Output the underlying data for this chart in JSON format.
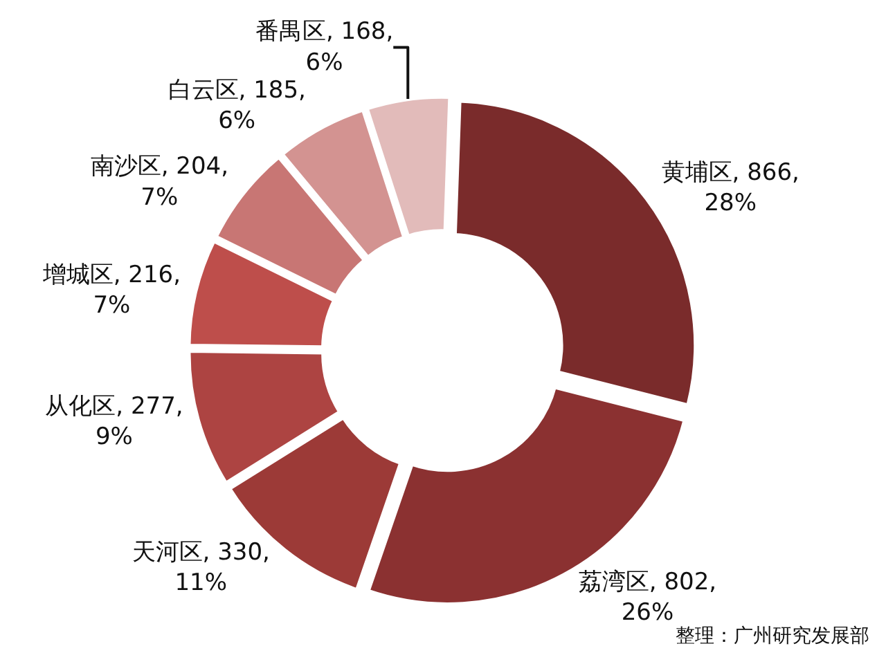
{
  "chart_data": {
    "type": "donut",
    "categories": [
      "黄埔区",
      "荔湾区",
      "天河区",
      "从化区",
      "增城区",
      "南沙区",
      "白云区",
      "番禺区"
    ],
    "values": [
      866,
      802,
      330,
      277,
      216,
      204,
      185,
      168
    ],
    "value_labels": [
      "866,\n28%",
      "802,\n26%",
      "330,\n11%",
      "277,\n9%",
      "216,\n7%",
      "204,\n7%",
      "185,\n6%",
      "168,\n6%"
    ],
    "colors": [
      "#7a2b2b",
      "#8b3131",
      "#9c3a37",
      "#ad4442",
      "#be4e4b",
      "#c87674",
      "#d39391",
      "#e2bbba"
    ],
    "legend": false,
    "annotations": [
      "整理：广州研究发展部"
    ]
  }
}
